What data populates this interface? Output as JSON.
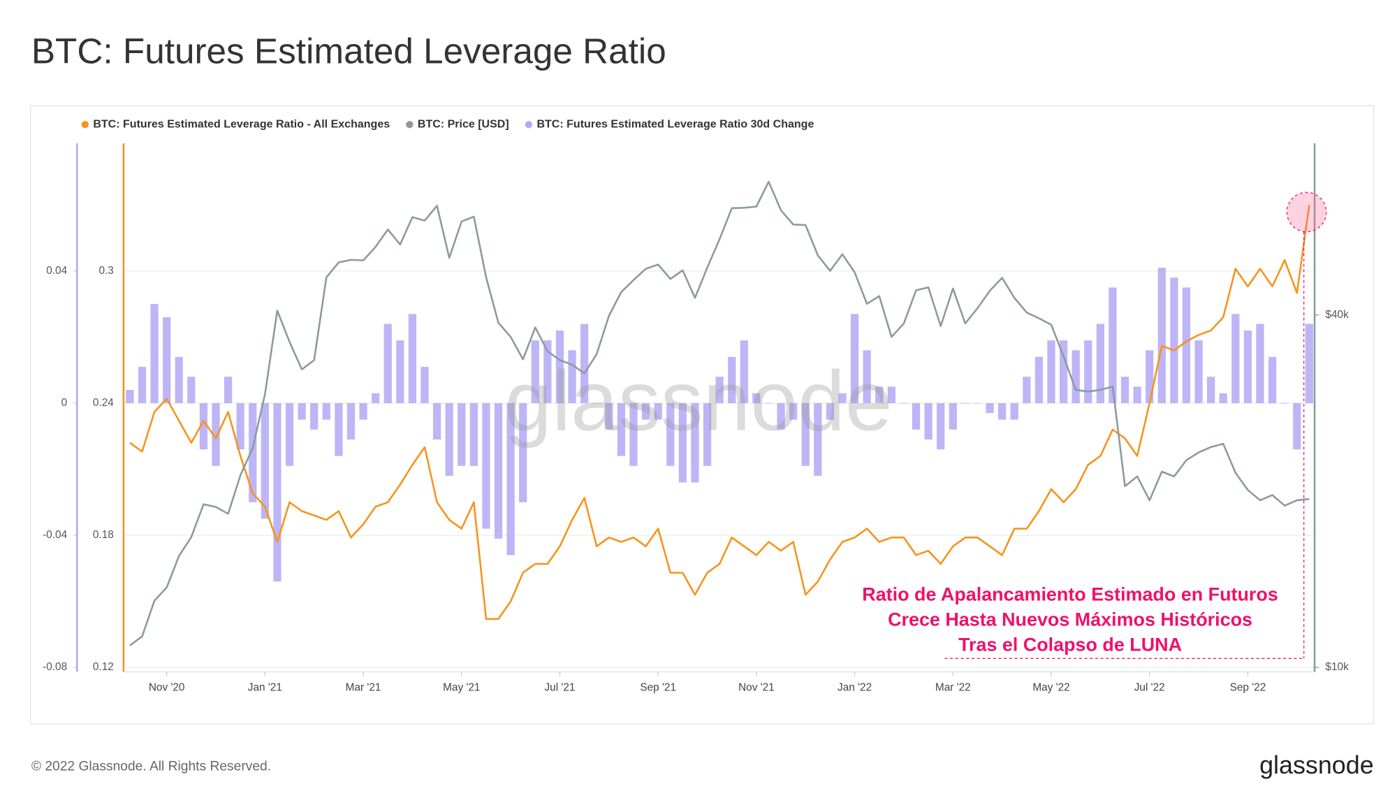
{
  "chart_data": {
    "type": "combo",
    "title": "BTC: Futures Estimated Leverage Ratio",
    "categories": [
      null,
      null,
      null,
      "Nov '20",
      null,
      null,
      null,
      null,
      null,
      null,
      null,
      "Jan '21",
      null,
      null,
      null,
      null,
      null,
      null,
      null,
      "Mar '21",
      null,
      null,
      null,
      null,
      null,
      null,
      null,
      "May '21",
      null,
      null,
      null,
      null,
      null,
      null,
      null,
      "Jul '21",
      null,
      null,
      null,
      null,
      null,
      null,
      null,
      "Sep '21",
      null,
      null,
      null,
      null,
      null,
      null,
      null,
      "Nov '21",
      null,
      null,
      null,
      null,
      null,
      null,
      null,
      "Jan '22",
      null,
      null,
      null,
      null,
      null,
      null,
      null,
      "Mar '22",
      null,
      null,
      null,
      null,
      null,
      null,
      null,
      "May '22",
      null,
      null,
      null,
      null,
      null,
      null,
      null,
      "Jul '22",
      null,
      null,
      null,
      null,
      null,
      null,
      null,
      "Sep '22",
      null,
      null,
      null,
      null,
      null
    ],
    "series": [
      {
        "name": "BTC: Futures Estimated Leverage Ratio - All Exchanges",
        "type": "line",
        "axis": "y",
        "color": "#f7931a",
        "values": [
          0.222,
          0.218,
          0.236,
          0.242,
          0.232,
          0.222,
          0.232,
          0.224,
          0.236,
          0.216,
          0.199,
          0.193,
          0.177,
          0.195,
          0.191,
          0.189,
          0.187,
          0.191,
          0.179,
          0.185,
          0.193,
          0.195,
          0.203,
          0.212,
          0.22,
          0.195,
          0.187,
          0.183,
          0.195,
          0.142,
          0.142,
          0.15,
          0.163,
          0.167,
          0.167,
          0.175,
          0.187,
          0.197,
          0.175,
          0.179,
          0.177,
          0.179,
          0.175,
          0.183,
          0.163,
          0.163,
          0.153,
          0.163,
          0.167,
          0.179,
          0.175,
          0.171,
          0.177,
          0.173,
          0.177,
          0.153,
          0.159,
          0.169,
          0.177,
          0.179,
          0.183,
          0.177,
          0.179,
          0.179,
          0.171,
          0.173,
          0.167,
          0.175,
          0.179,
          0.179,
          0.175,
          0.171,
          0.183,
          0.183,
          0.191,
          0.201,
          0.195,
          0.201,
          0.212,
          0.216,
          0.228,
          0.224,
          0.216,
          0.24,
          0.266,
          0.264,
          0.268,
          0.271,
          0.273,
          0.279,
          0.301,
          0.293,
          0.301,
          0.293,
          0.305,
          0.29,
          0.33
        ]
      },
      {
        "name": "BTC: Price [USD]",
        "type": "line",
        "axis": "y2",
        "color": "#8a9a9f",
        "values": [
          10900,
          11300,
          13000,
          13700,
          15500,
          16700,
          19000,
          18800,
          18300,
          21300,
          23700,
          29300,
          40700,
          36000,
          32300,
          33500,
          46400,
          49200,
          49700,
          49600,
          52300,
          56000,
          52800,
          58800,
          58000,
          61500,
          50100,
          57800,
          58900,
          46400,
          38800,
          36700,
          33600,
          38100,
          34700,
          33500,
          32900,
          31800,
          34300,
          39900,
          43800,
          45900,
          48000,
          48800,
          46100,
          47700,
          42800,
          48200,
          53900,
          60900,
          61000,
          61300,
          67600,
          60400,
          57100,
          57000,
          50600,
          47600,
          50800,
          47300,
          41800,
          43100,
          36700,
          38700,
          44100,
          44600,
          38300,
          44400,
          38700,
          41100,
          44000,
          46300,
          42800,
          40400,
          39500,
          38500,
          34000,
          29800,
          29600,
          29800,
          30200,
          20400,
          21200,
          19300,
          21600,
          21200,
          22600,
          23300,
          23800,
          24100,
          21500,
          20100,
          19300,
          19700,
          18900,
          19300,
          19400
        ]
      },
      {
        "name": "BTC: Futures Estimated Leverage Ratio 30d Change",
        "type": "bar",
        "axis": "y3",
        "color": "#b3a8f5",
        "values": [
          0.004,
          0.011,
          0.03,
          0.026,
          0.014,
          0.008,
          -0.014,
          -0.019,
          0.008,
          -0.014,
          -0.03,
          -0.035,
          -0.054,
          -0.019,
          -0.005,
          -0.008,
          -0.005,
          -0.016,
          -0.011,
          -0.005,
          0.003,
          0.024,
          0.019,
          0.027,
          0.011,
          -0.011,
          -0.022,
          -0.019,
          -0.019,
          -0.038,
          -0.041,
          -0.046,
          -0.03,
          0.019,
          0.019,
          0.022,
          0.016,
          0.024,
          0,
          -0.008,
          -0.016,
          -0.019,
          -0.005,
          -0.005,
          -0.019,
          -0.024,
          -0.024,
          -0.019,
          0.008,
          0.014,
          0.019,
          0.003,
          0,
          -0.008,
          -0.005,
          -0.019,
          -0.022,
          -0.005,
          0.003,
          0.027,
          0.016,
          0.005,
          0.005,
          0,
          -0.008,
          -0.011,
          -0.014,
          -0.008,
          0,
          0,
          -0.003,
          -0.005,
          -0.005,
          0.008,
          0.014,
          0.019,
          0.019,
          0.016,
          0.019,
          0.024,
          0.035,
          0.008,
          0.005,
          0.016,
          0.041,
          0.038,
          0.035,
          0.019,
          0.008,
          0.003,
          0.027,
          0.022,
          0.024,
          0.014,
          0,
          -0.014,
          0.024
        ]
      }
    ],
    "ylim": [
      0.12,
      0.36
    ],
    "yticks": [
      0.12,
      0.18,
      0.24,
      0.3
    ],
    "y2lim": [
      10000,
      80000
    ],
    "y2scale": "log",
    "y2ticks": [
      {
        "value": 10000,
        "label": "$10k"
      },
      {
        "value": 40000,
        "label": "$40k"
      }
    ],
    "y3lim": [
      -0.08,
      0.08
    ],
    "y3ticks": [
      -0.08,
      -0.04,
      0,
      0.04
    ],
    "grid": true,
    "legend": "top-left",
    "annotation": [
      "Ratio de Apalancamiento Estimado en Futuros",
      "Crece Hasta Nuevos Máximos Históricos",
      "Tras el Colapso de LUNA"
    ]
  },
  "footer": {
    "copyright": "© 2022 Glassnode. All Rights Reserved.",
    "brand": "glassnode"
  }
}
